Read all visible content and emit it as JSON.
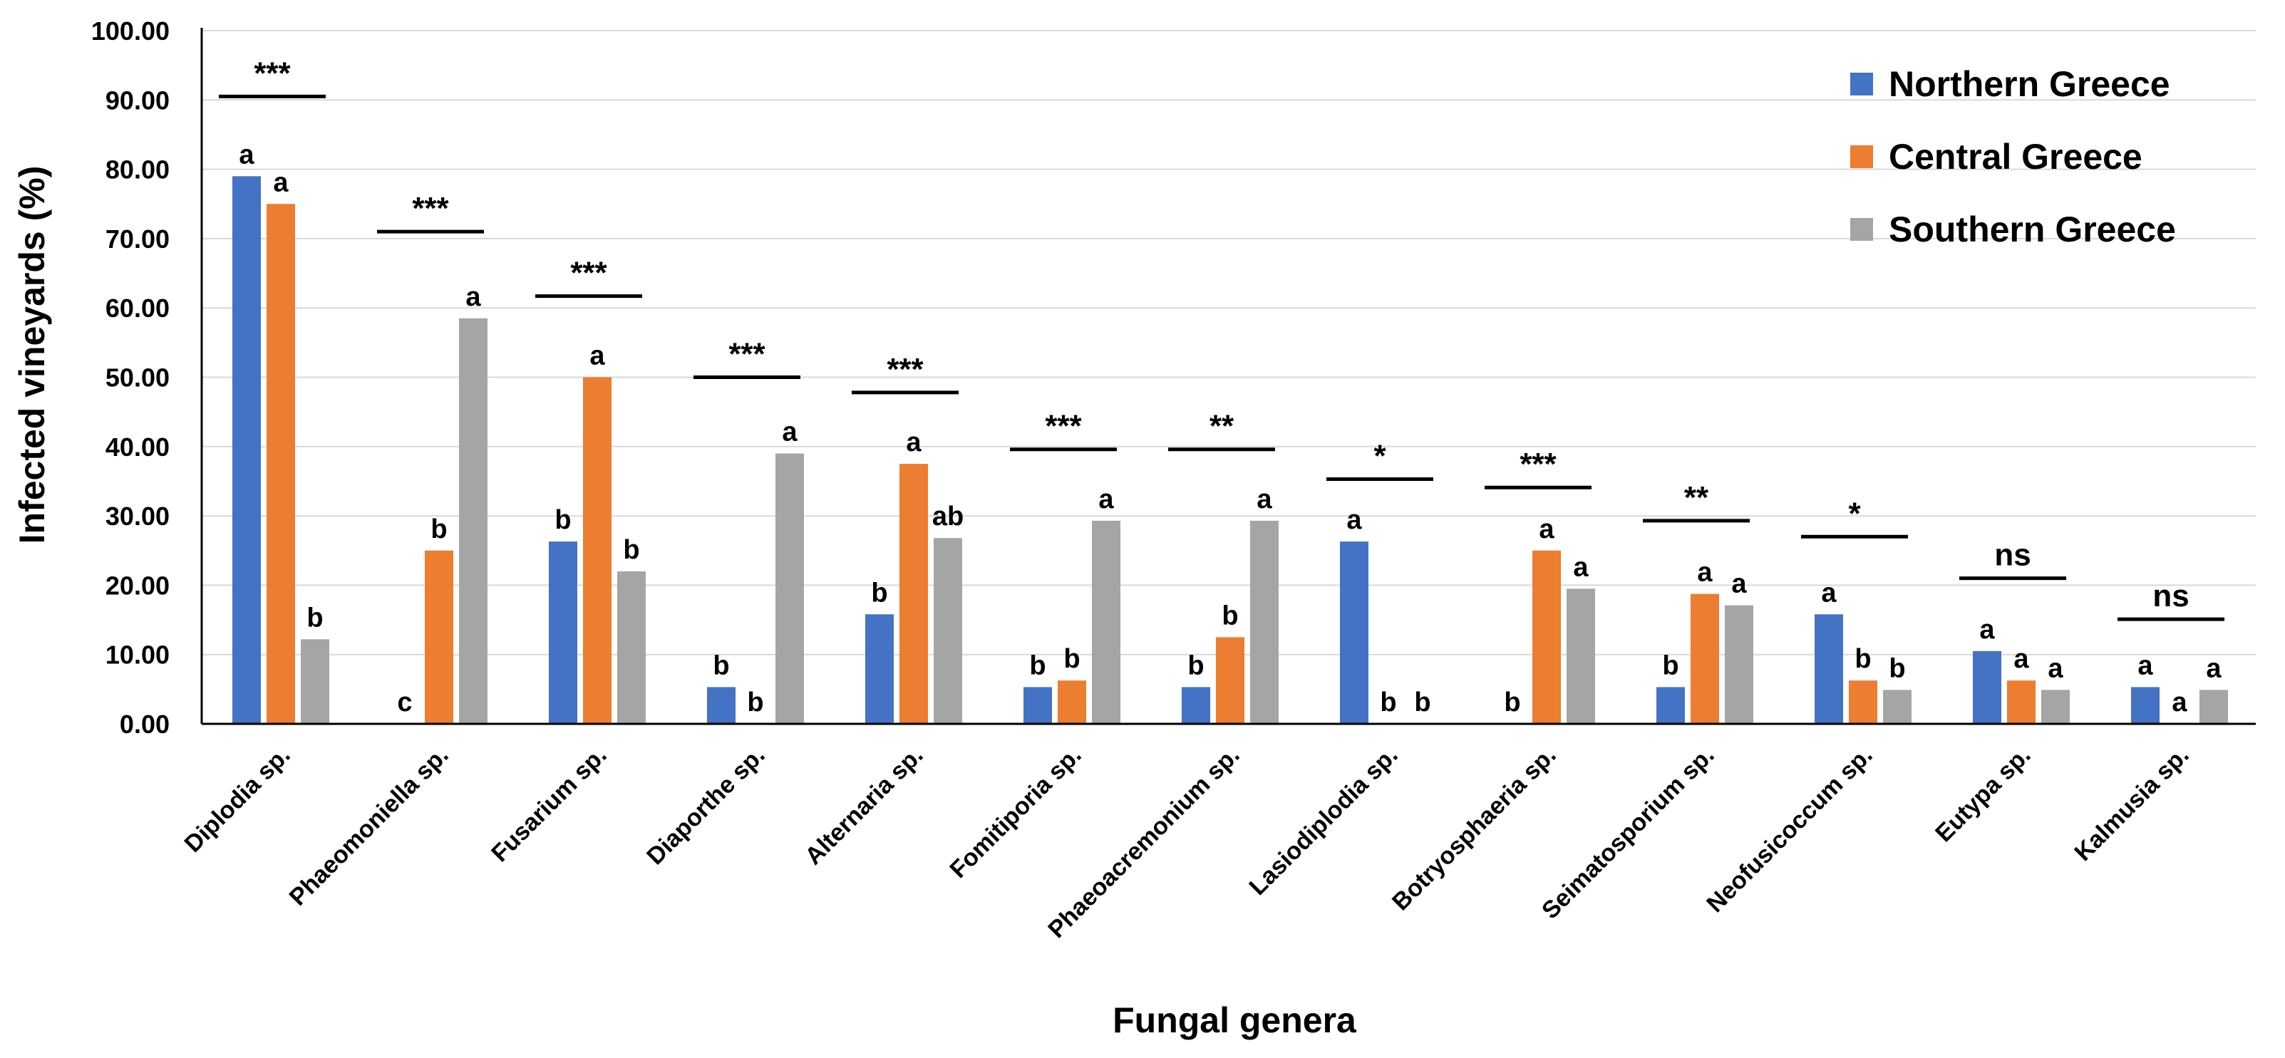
{
  "chart_data": {
    "type": "bar",
    "title": "",
    "xlabel": "Fungal genera",
    "ylabel": "Infected vineyards (%)",
    "ylim": [
      0,
      100
    ],
    "ytick_step": 10,
    "ytick_labels": [
      "0.00",
      "10.00",
      "20.00",
      "30.00",
      "40.00",
      "50.00",
      "60.00",
      "70.00",
      "80.00",
      "90.00",
      "100.00"
    ],
    "grid": true,
    "legend_position": "top-right",
    "categories": [
      "Diplodia sp.",
      "Phaeomoniella sp.",
      "Fusarium sp.",
      "Diaporthe sp.",
      "Alternaria sp.",
      "Fomitiporia sp.",
      "Phaeoacremonium sp.",
      "Lasiodiplodia sp.",
      "Botryosphaeria sp.",
      "Seimatosporium sp.",
      "Neofusicoccum sp.",
      "Eutypa sp.",
      "Kalmusia sp."
    ],
    "series": [
      {
        "name": "Northern Greece",
        "color": "#4472C4",
        "values": [
          79.0,
          0,
          26.3,
          5.3,
          15.8,
          5.3,
          5.3,
          26.3,
          0,
          5.3,
          15.8,
          10.5,
          5.3
        ],
        "letters": [
          "a",
          "c",
          "b",
          "b",
          "b",
          "b",
          "b",
          "a",
          "b",
          "b",
          "a",
          "a",
          "a"
        ]
      },
      {
        "name": "Central Greece",
        "color": "#ED7D31",
        "values": [
          75.0,
          25.0,
          50.0,
          0,
          37.5,
          6.25,
          12.5,
          0,
          25.0,
          18.75,
          6.25,
          6.25,
          0
        ],
        "letters": [
          "a",
          "b",
          "a",
          "b",
          "a",
          "b",
          "b",
          "b",
          "a",
          "a",
          "b",
          "a",
          "a"
        ]
      },
      {
        "name": "Southern Greece",
        "color": "#A5A5A5",
        "values": [
          12.2,
          58.5,
          22.0,
          39.0,
          26.8,
          29.3,
          29.3,
          0,
          19.5,
          17.1,
          4.9,
          4.9,
          4.9
        ],
        "letters": [
          "b",
          "a",
          "b",
          "a",
          "ab",
          "a",
          "a",
          "b",
          "a",
          "a",
          "b",
          "a",
          "a"
        ]
      }
    ],
    "significance": [
      {
        "text": "***",
        "level": 90.5
      },
      {
        "text": "***",
        "level": 71.0
      },
      {
        "text": "***",
        "level": 61.7
      },
      {
        "text": "***",
        "level": 50.0
      },
      {
        "text": "***",
        "level": 47.8
      },
      {
        "text": "***",
        "level": 39.6
      },
      {
        "text": "**",
        "level": 39.6
      },
      {
        "text": "*",
        "level": 35.3
      },
      {
        "text": "***",
        "level": 34.1
      },
      {
        "text": "**",
        "level": 29.3
      },
      {
        "text": "*",
        "level": 27.0
      },
      {
        "text": "ns",
        "level": 21.0
      },
      {
        "text": "ns",
        "level": 15.1
      }
    ]
  }
}
